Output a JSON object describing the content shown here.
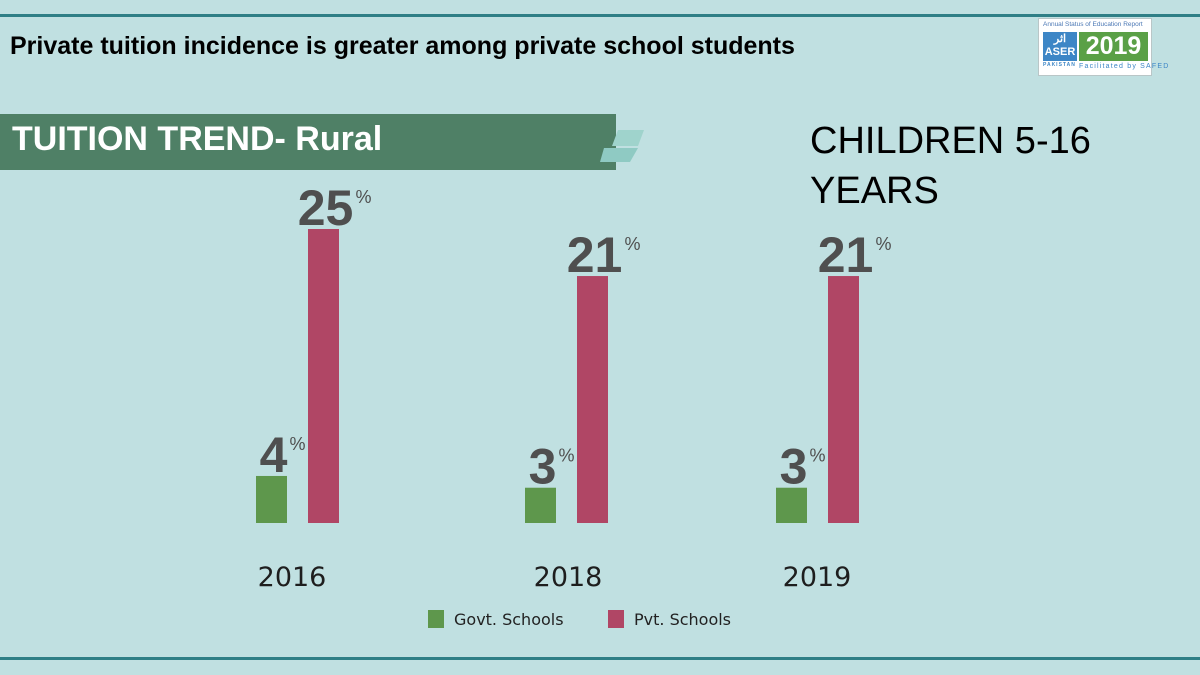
{
  "headline": "Private tuition incidence is greater among private school students",
  "logo": {
    "tagline": "Annual Status of Education Report",
    "mark": "اثر",
    "org": "ASER",
    "year": "2019",
    "country": "PAKISTAN",
    "facilitated": "Facilitated by SAFED"
  },
  "banner": {
    "title": "TUITION TREND- Rural"
  },
  "age_group": "CHILDREN 5-16 YEARS",
  "colors": {
    "govt": "#5e974c",
    "pvt": "#b04665",
    "background": "#c0e0e1",
    "banner": "#4f8066",
    "rule": "#2f7f86"
  },
  "chart_data": {
    "type": "bar",
    "title": "TUITION TREND- Rural",
    "subtitle": "CHILDREN 5-16 YEARS",
    "categories": [
      "2016",
      "2018",
      "2019"
    ],
    "series": [
      {
        "name": "Govt. Schools",
        "values": [
          4,
          3,
          3
        ],
        "color": "#5e974c"
      },
      {
        "name": "Pvt. Schools",
        "values": [
          25,
          21,
          21
        ],
        "color": "#b04665"
      }
    ],
    "unit": "%",
    "ylim": [
      0,
      25
    ],
    "grid": false,
    "legend": "bottom-center",
    "xlabel": "",
    "ylabel": ""
  }
}
